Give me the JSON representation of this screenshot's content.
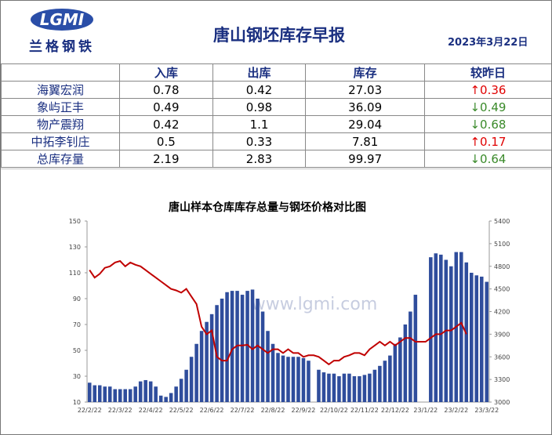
{
  "header": {
    "logo": "LGMI",
    "logo_text": "兰格钢铁",
    "title": "唐山钢坯库存早报",
    "date": "2023年3月22日"
  },
  "table": {
    "columns": [
      "入库",
      "出库",
      "库存",
      "较昨日"
    ],
    "rows": [
      {
        "name": "海翼宏润",
        "in": 0.78,
        "out": 0.42,
        "stock": 27.03,
        "change": "↑0.36",
        "color": "#e00000"
      },
      {
        "name": "象屿正丰",
        "in": 0.49,
        "out": 0.98,
        "stock": 36.09,
        "change": "↓0.49",
        "color": "#3a8a2a"
      },
      {
        "name": "物产震翔",
        "in": 0.42,
        "out": 1.1,
        "stock": 29.04,
        "change": "↓0.68",
        "color": "#3a8a2a"
      },
      {
        "name": "中拓李钊庄",
        "in": 0.5,
        "out": 0.33,
        "stock": 7.81,
        "change": "↑0.17",
        "color": "#e00000"
      },
      {
        "name": "总库存量",
        "in": 2.19,
        "out": 2.83,
        "stock": 99.97,
        "change": "↓0.64",
        "color": "#3a8a2a"
      }
    ]
  },
  "chart_data": {
    "type": "bar_line",
    "title": "唐山样本仓库库存总量与钢坯价格对比图",
    "watermark": "www.lgmi.com",
    "categories": [
      "22/2/22",
      null,
      null,
      null,
      null,
      null,
      "22/3/22",
      null,
      null,
      null,
      null,
      null,
      "22/4/22",
      null,
      null,
      null,
      null,
      null,
      "22/5/22",
      null,
      null,
      null,
      null,
      null,
      "22/6/22",
      null,
      null,
      null,
      null,
      null,
      "22/7/22",
      null,
      null,
      null,
      null,
      null,
      "22/8/22",
      null,
      null,
      null,
      null,
      null,
      "22/9/22",
      null,
      null,
      null,
      null,
      null,
      "22/10/22",
      null,
      null,
      null,
      null,
      null,
      "22/11/22",
      null,
      null,
      null,
      null,
      null,
      "22/12/22",
      null,
      null,
      null,
      null,
      null,
      "23/1/22",
      null,
      null,
      null,
      null,
      null,
      "23/2/22",
      null,
      null,
      null,
      null,
      null,
      "23/3/22"
    ],
    "series": [
      {
        "name": "库存",
        "color": "#2f4d9c",
        "values": [
          25,
          23,
          23,
          22,
          22,
          20,
          20,
          20,
          20,
          22,
          26,
          27,
          26,
          22,
          15,
          14,
          17,
          22,
          28,
          35,
          45,
          55,
          65,
          72,
          78,
          85,
          90,
          95,
          96,
          96,
          93,
          96,
          97,
          90,
          80,
          65,
          55,
          48,
          46,
          45,
          45,
          45,
          44,
          42,
          null,
          35,
          33,
          32,
          32,
          30,
          32,
          32,
          30,
          30,
          31,
          32,
          35,
          38,
          42,
          46,
          55,
          60,
          70,
          80,
          93,
          null,
          null,
          122,
          125,
          124,
          120,
          115,
          126,
          126,
          118,
          110,
          108,
          107,
          103
        ]
      },
      {
        "name": "钢坯价格",
        "color": "#c00000",
        "axis": "y2",
        "values": [
          4750,
          4650,
          4700,
          4780,
          4800,
          4850,
          4870,
          4800,
          4850,
          4820,
          4800,
          4750,
          4700,
          4650,
          4600,
          4550,
          4500,
          4480,
          4450,
          4500,
          4400,
          4300,
          4000,
          3900,
          3950,
          3600,
          3550,
          3550,
          3700,
          3750,
          3750,
          3760,
          3700,
          3750,
          3700,
          3650,
          3700,
          3700,
          3650,
          3700,
          3650,
          3650,
          3600,
          3620,
          3620,
          3600,
          3550,
          3500,
          3550,
          3550,
          3600,
          3620,
          3650,
          3650,
          3620,
          3700,
          3750,
          3800,
          3750,
          3800,
          3750,
          3800,
          3850,
          3850,
          3800,
          3800,
          3800,
          3850,
          3900,
          3900,
          3950,
          3950,
          4000,
          4050,
          3900,
          null,
          null,
          null,
          null
        ]
      }
    ],
    "ylim": [
      10,
      150
    ],
    "yticks": [
      10,
      30,
      50,
      70,
      90,
      110,
      130,
      150
    ],
    "y2lim": [
      3000,
      5400
    ],
    "y2ticks": [
      3000,
      3300,
      3600,
      3900,
      4200,
      4500,
      4800,
      5100,
      5400
    ]
  }
}
